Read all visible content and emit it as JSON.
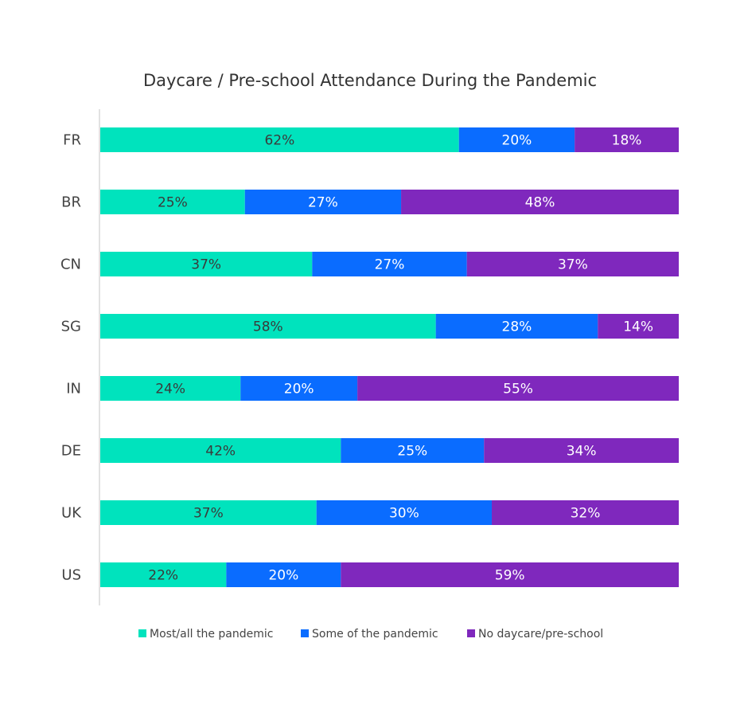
{
  "chart_data": {
    "type": "bar",
    "orientation": "horizontal",
    "stacked": true,
    "title": "Daycare / Pre-school Attendance During the Pandemic",
    "categories": [
      "FR",
      "BR",
      "CN",
      "SG",
      "IN",
      "DE",
      "UK",
      "US"
    ],
    "series": [
      {
        "name": "Most/all the pandemic",
        "color": "#00e3bd",
        "label_color": "#3a3a3a",
        "values": [
          62,
          25,
          37,
          58,
          24,
          42,
          37,
          22
        ],
        "labels": [
          "62%",
          "25%",
          "37%",
          "58%",
          "24%",
          "42%",
          "37%",
          "22%"
        ]
      },
      {
        "name": "Some of the pandemic",
        "color": "#0a6cff",
        "label_color": "#ffffff",
        "values": [
          20,
          27,
          27,
          28,
          20,
          25,
          30,
          20
        ],
        "labels": [
          "20%",
          "27%",
          "27%",
          "28%",
          "20%",
          "25%",
          "30%",
          "20%"
        ]
      },
      {
        "name": "No daycare/pre-school",
        "color": "#7f28bd",
        "label_color": "#ffffff",
        "values": [
          18,
          48,
          37,
          14,
          55,
          34,
          32,
          59
        ],
        "labels": [
          "18%",
          "48%",
          "37%",
          "14%",
          "55%",
          "34%",
          "32%",
          "59%"
        ]
      }
    ],
    "legend_position": "bottom",
    "grid": false
  }
}
